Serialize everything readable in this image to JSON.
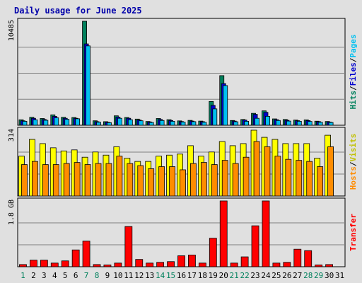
{
  "chart_data": {
    "type": "bar",
    "title": "Daily usage for June 2025",
    "days": [
      "1",
      "2",
      "3",
      "4",
      "5",
      "6",
      "7",
      "8",
      "9",
      "10",
      "11",
      "12",
      "13",
      "14",
      "15",
      "16",
      "17",
      "18",
      "19",
      "20",
      "21",
      "22",
      "23",
      "24",
      "25",
      "26",
      "27",
      "28",
      "29",
      "30",
      "31"
    ],
    "weekend_days": [
      "1",
      "7",
      "8",
      "14",
      "15",
      "21",
      "22",
      "28",
      "29"
    ],
    "panels": [
      {
        "id": "hits",
        "max_label": "10485",
        "max": 10485,
        "series": [
          {
            "name": "Hits",
            "color": "#00805c",
            "values": [
              550,
              800,
              680,
              1050,
              800,
              780,
              10485,
              450,
              360,
              950,
              780,
              620,
              380,
              680,
              560,
              440,
              490,
              420,
              2400,
              5000,
              480,
              580,
              1200,
              1450,
              640,
              580,
              520,
              540,
              410,
              380,
              0
            ]
          },
          {
            "name": "Files",
            "color": "#0000d0",
            "values": [
              450,
              700,
              580,
              900,
              700,
              700,
              8200,
              360,
              300,
              820,
              700,
              530,
              330,
              580,
              480,
              370,
              420,
              360,
              2000,
              4200,
              420,
              520,
              1100,
              1300,
              560,
              500,
              460,
              470,
              360,
              320,
              0
            ]
          },
          {
            "name": "Pages",
            "color": "#00c0f0",
            "values": [
              400,
              550,
              500,
              750,
              600,
              650,
              8000,
              300,
              260,
              700,
              560,
              450,
              280,
              480,
              400,
              320,
              360,
              300,
              1650,
              4000,
              350,
              400,
              700,
              900,
              480,
              420,
              400,
              380,
              300,
              280,
              0
            ]
          }
        ],
        "side_label": [
          {
            "text": "Hits",
            "color": "#00805c"
          },
          {
            "text": "/",
            "color": "#000000"
          },
          {
            "text": "Files",
            "color": "#0000d0"
          },
          {
            "text": "/",
            "color": "#000000"
          },
          {
            "text": "Pages",
            "color": "#00c0f0"
          }
        ]
      },
      {
        "id": "visits",
        "max_label": "314",
        "max": 314,
        "series": [
          {
            "name": "Visits",
            "color": "#ffff00",
            "values": [
              190,
              270,
              250,
              230,
              215,
              220,
              185,
              210,
              195,
              235,
              180,
              165,
              165,
              190,
              195,
              200,
              240,
              190,
              210,
              260,
              240,
              250,
              314,
              280,
              270,
              250,
              250,
              250,
              180,
              290,
              0
            ]
          },
          {
            "name": "Hosts",
            "color": "#ff8c00",
            "values": [
              150,
              165,
              150,
              150,
              155,
              160,
              150,
              155,
              155,
              190,
              155,
              145,
              130,
              140,
              140,
              125,
              155,
              160,
              150,
              170,
              155,
              185,
              260,
              235,
              190,
              175,
              170,
              165,
              140,
              235,
              0
            ]
          }
        ],
        "side_label": [
          {
            "text": "Hosts",
            "color": "#ff8c00"
          },
          {
            "text": "/",
            "color": "#000000"
          },
          {
            "text": "Visits",
            "color": "#c0c000"
          }
        ]
      },
      {
        "id": "transfer",
        "max_label": "1.8 GB",
        "max": 1.8,
        "series": [
          {
            "name": "Transfer",
            "color": "#ff0000",
            "values": [
              0.06,
              0.18,
              0.18,
              0.1,
              0.16,
              0.46,
              0.7,
              0.06,
              0.05,
              0.1,
              1.1,
              0.2,
              0.1,
              0.12,
              0.14,
              0.3,
              0.32,
              0.1,
              0.78,
              1.8,
              0.1,
              0.27,
              1.12,
              1.8,
              0.1,
              0.12,
              0.48,
              0.44,
              0.05,
              0.06,
              0
            ]
          }
        ],
        "side_label": [
          {
            "text": "Transfer",
            "color": "#ff0000"
          }
        ]
      }
    ],
    "colors": {
      "background": "#e0e0e0",
      "weekday_label": "#000000",
      "weekend_label": "#00805c",
      "title": "#0000aa",
      "grid": "#808080"
    }
  }
}
